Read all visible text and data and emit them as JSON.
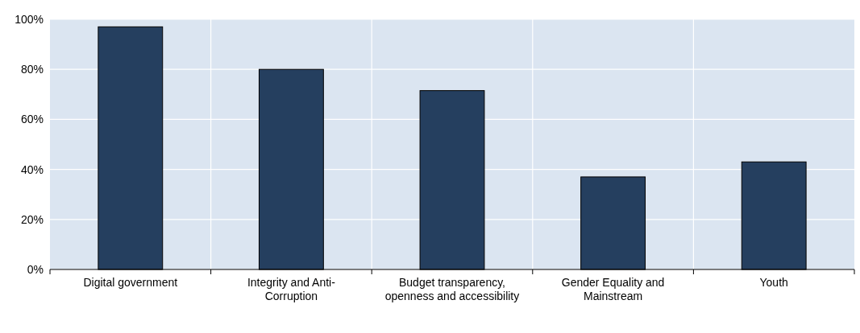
{
  "chart_data": {
    "type": "bar",
    "categories": [
      "Digital government",
      "Integrity and Anti-Corruption",
      "Budget transparency, openness and accessibility",
      "Gender Equality and Mainstream",
      "Youth"
    ],
    "values": [
      0.97,
      0.8,
      0.715,
      0.37,
      0.43
    ],
    "color": "#253f5f",
    "ylim": [
      0,
      1
    ],
    "yticks": [
      {
        "value": 0,
        "label": "0%"
      },
      {
        "value": 0.2,
        "label": "20%"
      },
      {
        "value": 0.4,
        "label": "40%"
      },
      {
        "value": 0.6,
        "label": "60%"
      },
      {
        "value": 0.8,
        "label": "80%"
      },
      {
        "value": 1,
        "label": "100%"
      }
    ],
    "grid": true
  }
}
